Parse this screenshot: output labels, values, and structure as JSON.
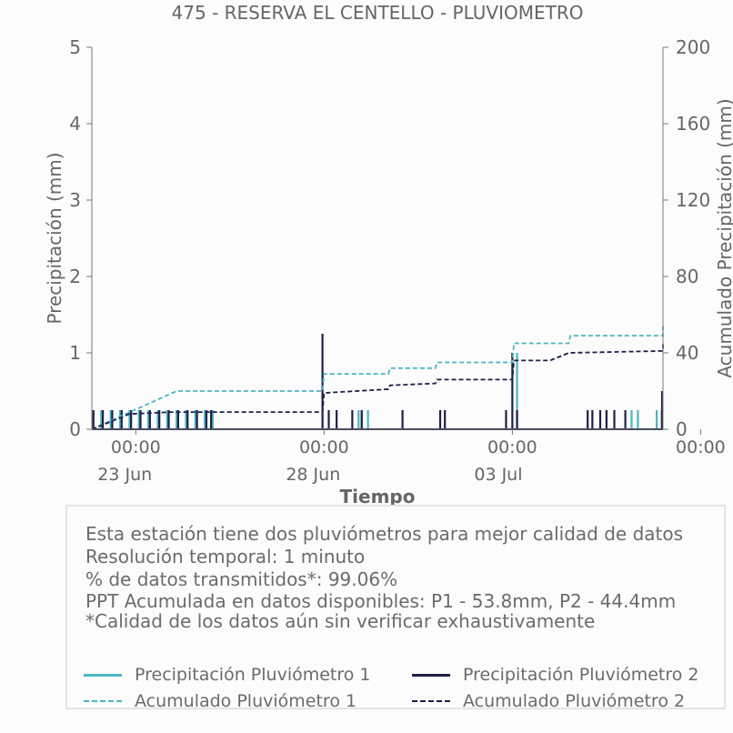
{
  "chart_data": {
    "type": "line",
    "title": "475 - RESERVA EL CENTELLO - PLUVIOMETRO",
    "xlabel": "Tiempo",
    "ylabel": "Precipitación (mm)",
    "y2label": "Acumulado Precipitación (mm)",
    "ylim": [
      0,
      5
    ],
    "y2lim": [
      0,
      200
    ],
    "yticks": [
      "0",
      "1",
      "2",
      "3",
      "4",
      "5"
    ],
    "y2ticks": [
      "0",
      "40",
      "80",
      "120",
      "160",
      "200"
    ],
    "x_range_days": [
      "2025-06-22T20:00",
      "2025-07-08T00:00"
    ],
    "xticks": [
      {
        "t": "2025-06-24T00:00",
        "label": "00:00",
        "sub": "23 Jun"
      },
      {
        "t": "2025-06-29T00:00",
        "label": "00:00",
        "sub": "28 Jun"
      },
      {
        "t": "2025-07-04T00:00",
        "label": "00:00",
        "sub": "03 Jul"
      },
      {
        "t": "2025-07-09T00:00",
        "label": "00:00",
        "sub": ""
      }
    ],
    "grid": false,
    "series": [
      {
        "name": "Precipitación Pluviómetro 1",
        "kind": "bars",
        "axis": "left",
        "color": "#4bb6c2",
        "points": [
          [
            "2025-06-22T20:00",
            0.25
          ],
          [
            "2025-06-23T02:00",
            0.25
          ],
          [
            "2025-06-23T08:00",
            0.25
          ],
          [
            "2025-06-23T14:00",
            0.25
          ],
          [
            "2025-06-23T20:00",
            0.25
          ],
          [
            "2025-06-24T02:00",
            0.25
          ],
          [
            "2025-06-24T08:00",
            0.25
          ],
          [
            "2025-06-24T14:00",
            0.25
          ],
          [
            "2025-06-24T20:00",
            0.25
          ],
          [
            "2025-06-25T02:00",
            0.25
          ],
          [
            "2025-06-25T08:00",
            0.25
          ],
          [
            "2025-06-25T14:00",
            0.25
          ],
          [
            "2025-06-25T20:00",
            0.25
          ],
          [
            "2025-06-26T01:00",
            0.25
          ],
          [
            "2025-06-29T22:00",
            0.25
          ],
          [
            "2025-06-30T00:00",
            0.25
          ],
          [
            "2025-06-30T04:00",
            0.25
          ],
          [
            "2025-07-04T03:00",
            1.0
          ],
          [
            "2025-07-07T04:00",
            0.25
          ],
          [
            "2025-07-07T08:00",
            0.25
          ],
          [
            "2025-07-07T20:00",
            0.25
          ],
          [
            "2025-07-08T13:00",
            0.25
          ],
          [
            "2025-07-08T17:00",
            0.25
          ]
        ]
      },
      {
        "name": "Precipitación Pluviómetro 2",
        "kind": "bars",
        "axis": "left",
        "color": "#1e2048",
        "points": [
          [
            "2025-06-22T21:00",
            0.25
          ],
          [
            "2025-06-23T03:00",
            0.25
          ],
          [
            "2025-06-23T09:00",
            0.25
          ],
          [
            "2025-06-23T15:00",
            0.25
          ],
          [
            "2025-06-23T21:00",
            0.25
          ],
          [
            "2025-06-24T03:00",
            0.25
          ],
          [
            "2025-06-24T09:00",
            0.25
          ],
          [
            "2025-06-24T15:00",
            0.25
          ],
          [
            "2025-06-24T21:00",
            0.25
          ],
          [
            "2025-06-25T03:00",
            0.25
          ],
          [
            "2025-06-25T09:00",
            0.25
          ],
          [
            "2025-06-25T15:00",
            0.25
          ],
          [
            "2025-06-25T21:00",
            0.25
          ],
          [
            "2025-06-26T00:00",
            0.25
          ],
          [
            "2025-06-28T23:00",
            1.25
          ],
          [
            "2025-06-29T03:00",
            0.25
          ],
          [
            "2025-06-29T08:00",
            0.25
          ],
          [
            "2025-06-29T18:00",
            0.25
          ],
          [
            "2025-06-30T00:00",
            0.25
          ],
          [
            "2025-07-01T02:00",
            0.25
          ],
          [
            "2025-07-02T02:00",
            0.25
          ],
          [
            "2025-07-02T05:00",
            0.25
          ],
          [
            "2025-07-03T20:00",
            0.25
          ],
          [
            "2025-07-04T00:00",
            1.0
          ],
          [
            "2025-07-04T03:00",
            0.25
          ],
          [
            "2025-07-06T00:00",
            0.25
          ],
          [
            "2025-07-06T03:00",
            0.25
          ],
          [
            "2025-07-06T08:00",
            0.25
          ],
          [
            "2025-07-06T12:00",
            0.25
          ],
          [
            "2025-07-06T17:00",
            0.25
          ],
          [
            "2025-07-07T00:00",
            0.25
          ],
          [
            "2025-07-08T01:00",
            0.5
          ],
          [
            "2025-07-08T04:00",
            0.25
          ],
          [
            "2025-07-08T13:00",
            0.25
          ]
        ]
      },
      {
        "name": "Acumulado Pluviómetro 1",
        "kind": "step",
        "axis": "right",
        "color": "#4bb6c2",
        "points": [
          [
            "2025-06-22T20:00",
            0
          ],
          [
            "2025-06-25T02:00",
            20
          ],
          [
            "2025-06-28T23:00",
            20
          ],
          [
            "2025-06-29T00:00",
            29
          ],
          [
            "2025-06-30T17:00",
            29
          ],
          [
            "2025-06-30T18:00",
            32
          ],
          [
            "2025-07-01T23:00",
            32
          ],
          [
            "2025-07-02T00:00",
            35
          ],
          [
            "2025-07-04T00:00",
            35
          ],
          [
            "2025-07-04T01:00",
            45
          ],
          [
            "2025-07-05T12:00",
            45
          ],
          [
            "2025-07-05T13:00",
            49
          ],
          [
            "2025-07-08T00:00",
            49
          ],
          [
            "2025-07-08T01:00",
            53
          ],
          [
            "2025-07-09T12:00",
            54
          ]
        ]
      },
      {
        "name": "Acumulado Pluviómetro 2",
        "kind": "step",
        "axis": "right",
        "color": "#1e2048",
        "points": [
          [
            "2025-06-22T20:00",
            0
          ],
          [
            "2025-06-23T20:00",
            8
          ],
          [
            "2025-06-24T23:00",
            9
          ],
          [
            "2025-06-28T23:00",
            9
          ],
          [
            "2025-06-29T00:00",
            19
          ],
          [
            "2025-06-30T17:00",
            21
          ],
          [
            "2025-06-30T18:00",
            23
          ],
          [
            "2025-07-01T23:00",
            24
          ],
          [
            "2025-07-02T00:00",
            26
          ],
          [
            "2025-07-04T00:00",
            26
          ],
          [
            "2025-07-04T01:00",
            36
          ],
          [
            "2025-07-05T00:00",
            36
          ],
          [
            "2025-07-05T12:00",
            40
          ],
          [
            "2025-07-08T00:00",
            41
          ],
          [
            "2025-07-08T01:00",
            45
          ],
          [
            "2025-07-09T12:00",
            45
          ]
        ]
      }
    ]
  },
  "info": {
    "line1": "Esta estación tiene dos pluviómetros para mejor calidad de datos",
    "line2": "Resolución temporal: 1 minuto",
    "line3": "% de datos transmitidos*: 99.06%",
    "line4": "PPT Acumulada en datos disponibles: P1 - 53.8mm, P2 - 44.4mm",
    "line5": "*Calidad de los datos aún sin verificar exhaustivamente"
  },
  "legend": {
    "p1": "Precipitación Pluviómetro 1",
    "p2": "Precipitación Pluviómetro 2",
    "a1": "Acumulado Pluviómetro 1",
    "a2": "Acumulado Pluviómetro 2"
  },
  "colors": {
    "p1": "#4bb6c2",
    "p2": "#1e2048",
    "axis": "#666666"
  }
}
